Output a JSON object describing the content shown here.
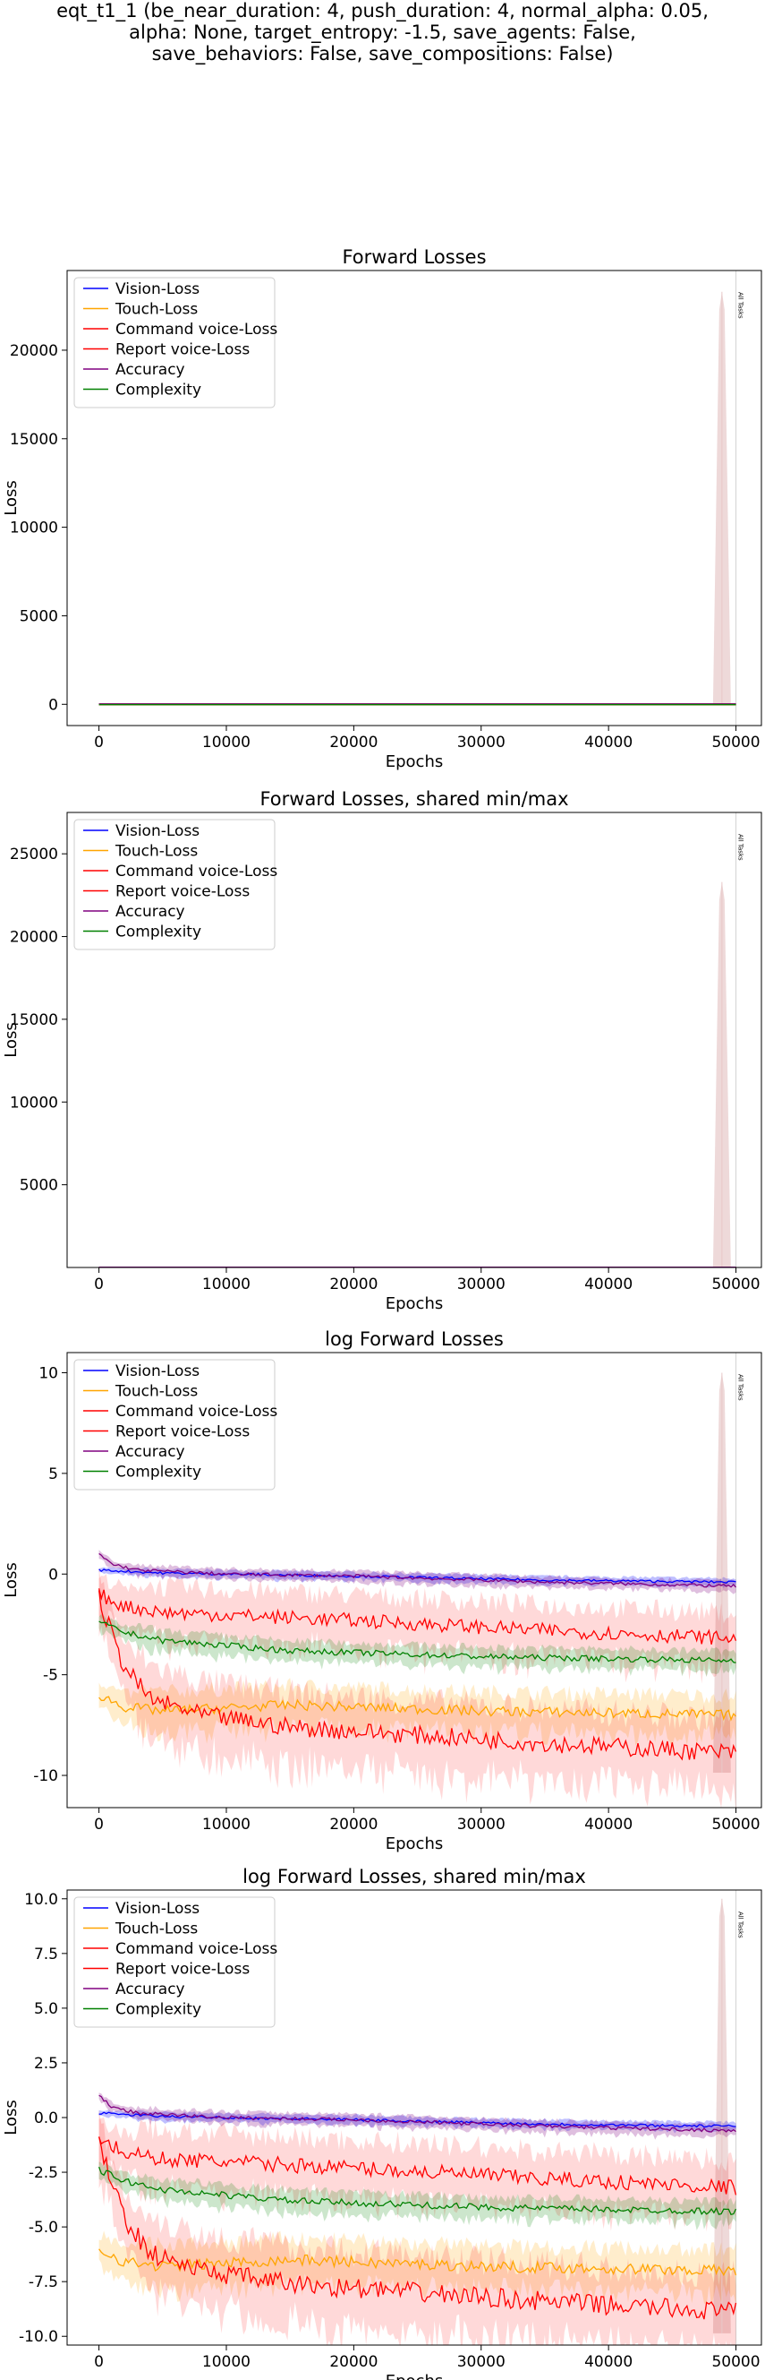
{
  "suptitle_lines": [
    "eqt_t1_1 (be_near_duration: 4, push_duration: 4, normal_alpha: 0.05,",
    "alpha: None, target_entropy: -1.5, save_agents: False,",
    "save_behaviors: False, save_compositions: False)"
  ],
  "colors": {
    "Vision-Loss": "#0000ff",
    "Touch-Loss": "#ffa500",
    "Command voice-Loss": "#ff0000",
    "Report voice-Loss": "#ff0000",
    "Accuracy": "#800080",
    "Complexity": "#008000",
    "all_tasks_line": "#d3d3d3"
  },
  "chart_data": [
    {
      "type": "line",
      "title": "Forward Losses",
      "xlabel": "Epochs",
      "ylabel": "Loss",
      "xlim": [
        -2500,
        52000
      ],
      "ylim": [
        -1200,
        24500
      ],
      "xticks": [
        "0",
        "10000",
        "20000",
        "30000",
        "40000",
        "50000"
      ],
      "yticks": [
        "0",
        "5000",
        "10000",
        "15000",
        "20000"
      ],
      "legend_position": "top-left",
      "annotation": "All Tasks",
      "annotation_x": 50000,
      "series": [
        {
          "name": "Vision-Loss",
          "mean_endpoints": [
            [
              0,
              1.2
            ],
            [
              50000,
              0.5
            ]
          ]
        },
        {
          "name": "Touch-Loss",
          "mean_endpoints": [
            [
              0,
              0.003
            ],
            [
              50000,
              0.001
            ]
          ]
        },
        {
          "name": "Command voice-Loss",
          "mean_endpoints": [
            [
              0,
              0.3
            ],
            [
              50000,
              0.04
            ]
          ]
        },
        {
          "name": "Report voice-Loss",
          "mean_endpoints": [
            [
              0,
              0.3
            ],
            [
              50000,
              0.0001
            ]
          ],
          "spike": {
            "x": 48900,
            "y": 23300
          }
        },
        {
          "name": "Accuracy",
          "mean_endpoints": [
            [
              0,
              2.5
            ],
            [
              50000,
              0.6
            ]
          ]
        },
        {
          "name": "Complexity",
          "mean_endpoints": [
            [
              0,
              0.08
            ],
            [
              50000,
              0.01
            ]
          ]
        }
      ]
    },
    {
      "type": "line",
      "title": "Forward Losses, shared min/max",
      "xlabel": "Epochs",
      "ylabel": "Loss",
      "xlim": [
        -2500,
        52000
      ],
      "ylim": [
        0,
        27500
      ],
      "xticks": [
        "0",
        "10000",
        "20000",
        "30000",
        "40000",
        "50000"
      ],
      "yticks": [
        "5000",
        "10000",
        "15000",
        "20000",
        "25000"
      ],
      "legend_position": "top-left",
      "annotation": "All Tasks",
      "annotation_x": 50000,
      "series": [
        {
          "name": "Vision-Loss"
        },
        {
          "name": "Touch-Loss"
        },
        {
          "name": "Command voice-Loss"
        },
        {
          "name": "Report voice-Loss",
          "spike": {
            "x": 48900,
            "y": 23300
          }
        },
        {
          "name": "Accuracy"
        },
        {
          "name": "Complexity"
        }
      ]
    },
    {
      "type": "line",
      "title": "log Forward Losses",
      "xlabel": "Epochs",
      "ylabel": "Loss",
      "xlim": [
        -2500,
        52000
      ],
      "ylim": [
        -11.6,
        11
      ],
      "xticks": [
        "0",
        "10000",
        "20000",
        "30000",
        "40000",
        "50000"
      ],
      "yticks": [
        "-10",
        "-5",
        "0",
        "5",
        "10"
      ],
      "legend_position": "top-left",
      "annotation": "All Tasks",
      "annotation_x": 50000,
      "series": [
        {
          "name": "Vision-Loss",
          "trend": [
            [
              0,
              0.2
            ],
            [
              5000,
              0.05
            ],
            [
              20000,
              -0.1
            ],
            [
              35000,
              -0.3
            ],
            [
              50000,
              -0.4
            ]
          ]
        },
        {
          "name": "Touch-Loss",
          "trend": [
            [
              0,
              -6.0
            ],
            [
              2000,
              -6.6
            ],
            [
              5000,
              -6.8
            ],
            [
              15000,
              -6.5
            ],
            [
              30000,
              -6.8
            ],
            [
              50000,
              -7.0
            ]
          ]
        },
        {
          "name": "Command voice-Loss",
          "trend": [
            [
              0,
              -1.0
            ],
            [
              2000,
              -1.6
            ],
            [
              5000,
              -1.9
            ],
            [
              20000,
              -2.3
            ],
            [
              35000,
              -2.8
            ],
            [
              50000,
              -3.2
            ]
          ]
        },
        {
          "name": "Report voice-Loss",
          "trend": [
            [
              0,
              -1.2
            ],
            [
              1000,
              -3.0
            ],
            [
              2000,
              -4.6
            ],
            [
              4000,
              -6.2
            ],
            [
              8000,
              -7.0
            ],
            [
              15000,
              -7.6
            ],
            [
              25000,
              -8.0
            ],
            [
              35000,
              -8.4
            ],
            [
              50000,
              -8.9
            ]
          ],
          "spike": {
            "x": 48900,
            "y": 10
          }
        },
        {
          "name": "Accuracy",
          "trend": [
            [
              0,
              1.0
            ],
            [
              1000,
              0.5
            ],
            [
              3000,
              0.2
            ],
            [
              10000,
              0.0
            ],
            [
              20000,
              -0.1
            ],
            [
              35000,
              -0.4
            ],
            [
              50000,
              -0.6
            ]
          ]
        },
        {
          "name": "Complexity",
          "trend": [
            [
              0,
              -2.4
            ],
            [
              2000,
              -2.9
            ],
            [
              5000,
              -3.3
            ],
            [
              15000,
              -3.8
            ],
            [
              30000,
              -4.1
            ],
            [
              50000,
              -4.3
            ]
          ]
        }
      ]
    },
    {
      "type": "line",
      "title": "log Forward Losses, shared min/max",
      "xlabel": "Epochs",
      "ylabel": "Loss",
      "xlim": [
        -2500,
        52000
      ],
      "ylim": [
        -10.4,
        10.4
      ],
      "xticks": [
        "0",
        "10000",
        "20000",
        "30000",
        "40000",
        "50000"
      ],
      "yticks": [
        "-10.0",
        "-7.5",
        "-5.0",
        "-2.5",
        "0.0",
        "2.5",
        "5.0",
        "7.5",
        "10.0"
      ],
      "legend_position": "top-left",
      "annotation": "All Tasks",
      "annotation_x": 50000,
      "series": [
        {
          "name": "Vision-Loss",
          "trend": [
            [
              0,
              0.2
            ],
            [
              5000,
              0.05
            ],
            [
              20000,
              -0.1
            ],
            [
              35000,
              -0.3
            ],
            [
              50000,
              -0.4
            ]
          ]
        },
        {
          "name": "Touch-Loss",
          "trend": [
            [
              0,
              -6.0
            ],
            [
              2000,
              -6.6
            ],
            [
              5000,
              -6.8
            ],
            [
              15000,
              -6.5
            ],
            [
              30000,
              -6.8
            ],
            [
              50000,
              -7.0
            ]
          ]
        },
        {
          "name": "Command voice-Loss",
          "trend": [
            [
              0,
              -1.0
            ],
            [
              2000,
              -1.6
            ],
            [
              5000,
              -1.9
            ],
            [
              20000,
              -2.3
            ],
            [
              35000,
              -2.8
            ],
            [
              50000,
              -3.2
            ]
          ]
        },
        {
          "name": "Report voice-Loss",
          "trend": [
            [
              0,
              -1.2
            ],
            [
              1000,
              -3.0
            ],
            [
              2000,
              -4.6
            ],
            [
              4000,
              -6.2
            ],
            [
              8000,
              -7.0
            ],
            [
              15000,
              -7.6
            ],
            [
              25000,
              -8.0
            ],
            [
              35000,
              -8.4
            ],
            [
              50000,
              -8.9
            ]
          ],
          "spike": {
            "x": 48900,
            "y": 10
          }
        },
        {
          "name": "Accuracy",
          "trend": [
            [
              0,
              1.0
            ],
            [
              1000,
              0.5
            ],
            [
              3000,
              0.2
            ],
            [
              10000,
              0.0
            ],
            [
              20000,
              -0.1
            ],
            [
              35000,
              -0.4
            ],
            [
              50000,
              -0.6
            ]
          ]
        },
        {
          "name": "Complexity",
          "trend": [
            [
              0,
              -2.4
            ],
            [
              2000,
              -2.9
            ],
            [
              5000,
              -3.3
            ],
            [
              15000,
              -3.8
            ],
            [
              30000,
              -4.1
            ],
            [
              50000,
              -4.3
            ]
          ]
        }
      ]
    }
  ]
}
